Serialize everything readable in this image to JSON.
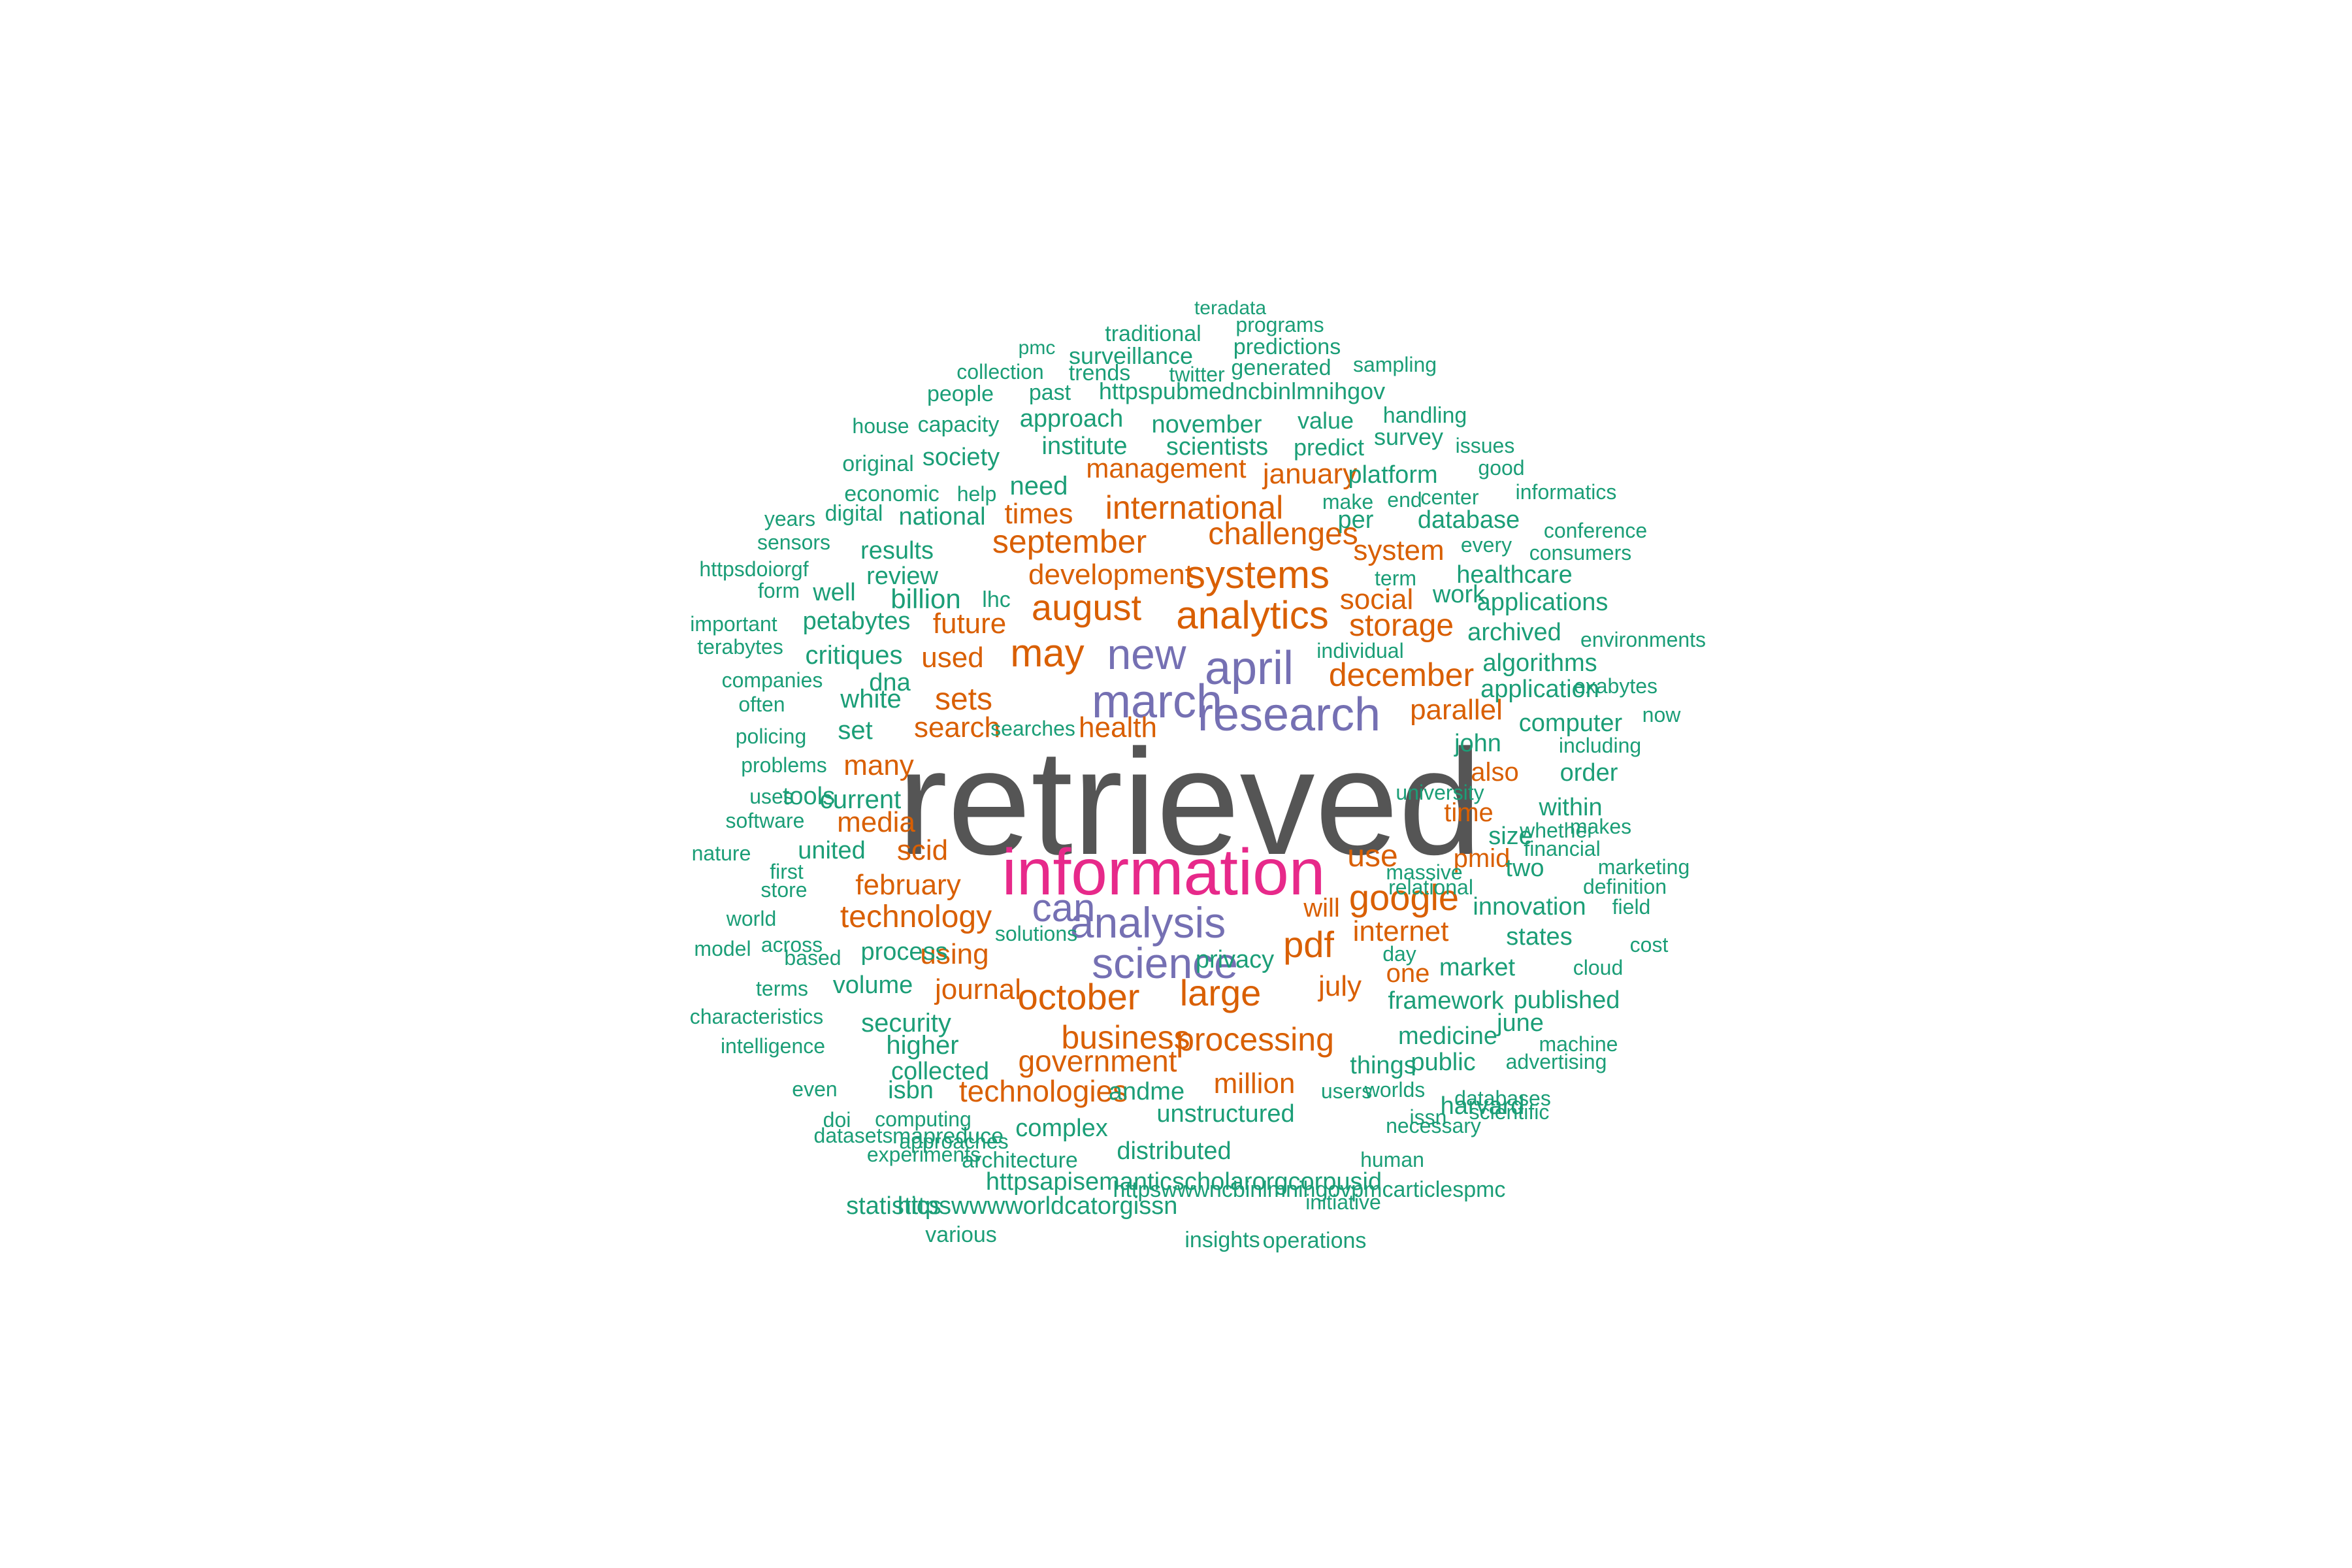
{
  "colors": {
    "c1": "#1b9e77",
    "c2": "#d95f02",
    "c3": "#7570b3",
    "c4": "#e7298a",
    "c5": "#555555"
  },
  "words": [
    {
      "t": "retrieved",
      "c": "c5"
    },
    {
      "t": "information",
      "c": "c4"
    },
    {
      "t": "research",
      "c": "c3"
    },
    {
      "t": "april",
      "c": "c3"
    },
    {
      "t": "march",
      "c": "c3"
    },
    {
      "t": "new",
      "c": "c3"
    },
    {
      "t": "analysis",
      "c": "c3"
    },
    {
      "t": "science",
      "c": "c3"
    },
    {
      "t": "can",
      "c": "c3"
    },
    {
      "t": "may",
      "c": "c2"
    },
    {
      "t": "analytics",
      "c": "c2"
    },
    {
      "t": "systems",
      "c": "c2"
    },
    {
      "t": "august",
      "c": "c2"
    },
    {
      "t": "october",
      "c": "c2"
    },
    {
      "t": "large",
      "c": "c2"
    },
    {
      "t": "google",
      "c": "c2"
    },
    {
      "t": "pdf",
      "c": "c2"
    },
    {
      "t": "business",
      "c": "c2"
    },
    {
      "t": "processing",
      "c": "c2"
    },
    {
      "t": "december",
      "c": "c2"
    },
    {
      "t": "september",
      "c": "c2"
    },
    {
      "t": "challenges",
      "c": "c2"
    },
    {
      "t": "international",
      "c": "c2"
    },
    {
      "t": "technology",
      "c": "c2"
    },
    {
      "t": "storage",
      "c": "c2"
    },
    {
      "t": "development",
      "c": "c2"
    },
    {
      "t": "sets",
      "c": "c2"
    },
    {
      "t": "use",
      "c": "c2"
    },
    {
      "t": "internet",
      "c": "c2"
    },
    {
      "t": "government",
      "c": "c2"
    },
    {
      "t": "technologies",
      "c": "c2"
    },
    {
      "t": "million",
      "c": "c2"
    },
    {
      "t": "journal",
      "c": "c2"
    },
    {
      "t": "parallel",
      "c": "c2"
    },
    {
      "t": "future",
      "c": "c2"
    },
    {
      "t": "management",
      "c": "c2"
    },
    {
      "t": "january",
      "c": "c2"
    },
    {
      "t": "times",
      "c": "c2"
    },
    {
      "t": "system",
      "c": "c2"
    },
    {
      "t": "social",
      "c": "c2"
    },
    {
      "t": "used",
      "c": "c2"
    },
    {
      "t": "search",
      "c": "c2"
    },
    {
      "t": "health",
      "c": "c2"
    },
    {
      "t": "many",
      "c": "c2"
    },
    {
      "t": "media",
      "c": "c2"
    },
    {
      "t": "scid",
      "c": "c2"
    },
    {
      "t": "february",
      "c": "c2"
    },
    {
      "t": "using",
      "c": "c2"
    },
    {
      "t": "july",
      "c": "c2"
    },
    {
      "t": "one",
      "c": "c2"
    },
    {
      "t": "will",
      "c": "c2"
    },
    {
      "t": "pmid",
      "c": "c2"
    },
    {
      "t": "time",
      "c": "c2"
    },
    {
      "t": "also",
      "c": "c2"
    },
    {
      "t": "teradata",
      "c": "c1"
    },
    {
      "t": "traditional",
      "c": "c1"
    },
    {
      "t": "programs",
      "c": "c1"
    },
    {
      "t": "pmc",
      "c": "c1"
    },
    {
      "t": "surveillance",
      "c": "c1"
    },
    {
      "t": "predictions",
      "c": "c1"
    },
    {
      "t": "collection",
      "c": "c1"
    },
    {
      "t": "trends",
      "c": "c1"
    },
    {
      "t": "twitter",
      "c": "c1"
    },
    {
      "t": "generated",
      "c": "c1"
    },
    {
      "t": "sampling",
      "c": "c1"
    },
    {
      "t": "people",
      "c": "c1"
    },
    {
      "t": "past",
      "c": "c1"
    },
    {
      "t": "httpspubmedncbinlmnihgov",
      "c": "c1"
    },
    {
      "t": "house",
      "c": "c1"
    },
    {
      "t": "capacity",
      "c": "c1"
    },
    {
      "t": "approach",
      "c": "c1"
    },
    {
      "t": "november",
      "c": "c1"
    },
    {
      "t": "value",
      "c": "c1"
    },
    {
      "t": "handling",
      "c": "c1"
    },
    {
      "t": "survey",
      "c": "c1"
    },
    {
      "t": "issues",
      "c": "c1"
    },
    {
      "t": "original",
      "c": "c1"
    },
    {
      "t": "society",
      "c": "c1"
    },
    {
      "t": "institute",
      "c": "c1"
    },
    {
      "t": "scientists",
      "c": "c1"
    },
    {
      "t": "predict",
      "c": "c1"
    },
    {
      "t": "good",
      "c": "c1"
    },
    {
      "t": "platform",
      "c": "c1"
    },
    {
      "t": "economic",
      "c": "c1"
    },
    {
      "t": "help",
      "c": "c1"
    },
    {
      "t": "need",
      "c": "c1"
    },
    {
      "t": "make",
      "c": "c1"
    },
    {
      "t": "end",
      "c": "c1"
    },
    {
      "t": "center",
      "c": "c1"
    },
    {
      "t": "informatics",
      "c": "c1"
    },
    {
      "t": "years",
      "c": "c1"
    },
    {
      "t": "digital",
      "c": "c1"
    },
    {
      "t": "national",
      "c": "c1"
    },
    {
      "t": "per",
      "c": "c1"
    },
    {
      "t": "database",
      "c": "c1"
    },
    {
      "t": "conference",
      "c": "c1"
    },
    {
      "t": "sensors",
      "c": "c1"
    },
    {
      "t": "results",
      "c": "c1"
    },
    {
      "t": "every",
      "c": "c1"
    },
    {
      "t": "consumers",
      "c": "c1"
    },
    {
      "t": "httpsdoiorgf",
      "c": "c1"
    },
    {
      "t": "review",
      "c": "c1"
    },
    {
      "t": "term",
      "c": "c1"
    },
    {
      "t": "healthcare",
      "c": "c1"
    },
    {
      "t": "form",
      "c": "c1"
    },
    {
      "t": "well",
      "c": "c1"
    },
    {
      "t": "billion",
      "c": "c1"
    },
    {
      "t": "lhc",
      "c": "c1"
    },
    {
      "t": "work",
      "c": "c1"
    },
    {
      "t": "applications",
      "c": "c1"
    },
    {
      "t": "important",
      "c": "c1"
    },
    {
      "t": "petabytes",
      "c": "c1"
    },
    {
      "t": "archived",
      "c": "c1"
    },
    {
      "t": "environments",
      "c": "c1"
    },
    {
      "t": "terabytes",
      "c": "c1"
    },
    {
      "t": "critiques",
      "c": "c1"
    },
    {
      "t": "individual",
      "c": "c1"
    },
    {
      "t": "algorithms",
      "c": "c1"
    },
    {
      "t": "companies",
      "c": "c1"
    },
    {
      "t": "dna",
      "c": "c1"
    },
    {
      "t": "application",
      "c": "c1"
    },
    {
      "t": "exabytes",
      "c": "c1"
    },
    {
      "t": "often",
      "c": "c1"
    },
    {
      "t": "white",
      "c": "c1"
    },
    {
      "t": "now",
      "c": "c1"
    },
    {
      "t": "policing",
      "c": "c1"
    },
    {
      "t": "set",
      "c": "c1"
    },
    {
      "t": "searches",
      "c": "c1"
    },
    {
      "t": "computer",
      "c": "c1"
    },
    {
      "t": "john",
      "c": "c1"
    },
    {
      "t": "including",
      "c": "c1"
    },
    {
      "t": "problems",
      "c": "c1"
    },
    {
      "t": "order",
      "c": "c1"
    },
    {
      "t": "uses",
      "c": "c1"
    },
    {
      "t": "tools",
      "c": "c1"
    },
    {
      "t": "current",
      "c": "c1"
    },
    {
      "t": "university",
      "c": "c1"
    },
    {
      "t": "software",
      "c": "c1"
    },
    {
      "t": "within",
      "c": "c1"
    },
    {
      "t": "size",
      "c": "c1"
    },
    {
      "t": "whether",
      "c": "c1"
    },
    {
      "t": "makes",
      "c": "c1"
    },
    {
      "t": "nature",
      "c": "c1"
    },
    {
      "t": "united",
      "c": "c1"
    },
    {
      "t": "financial",
      "c": "c1"
    },
    {
      "t": "first",
      "c": "c1"
    },
    {
      "t": "massive",
      "c": "c1"
    },
    {
      "t": "two",
      "c": "c1"
    },
    {
      "t": "marketing",
      "c": "c1"
    },
    {
      "t": "store",
      "c": "c1"
    },
    {
      "t": "relational",
      "c": "c1"
    },
    {
      "t": "definition",
      "c": "c1"
    },
    {
      "t": "world",
      "c": "c1"
    },
    {
      "t": "innovation",
      "c": "c1"
    },
    {
      "t": "field",
      "c": "c1"
    },
    {
      "t": "across",
      "c": "c1"
    },
    {
      "t": "solutions",
      "c": "c1"
    },
    {
      "t": "model",
      "c": "c1"
    },
    {
      "t": "based",
      "c": "c1"
    },
    {
      "t": "process",
      "c": "c1"
    },
    {
      "t": "states",
      "c": "c1"
    },
    {
      "t": "cost",
      "c": "c1"
    },
    {
      "t": "day",
      "c": "c1"
    },
    {
      "t": "privacy",
      "c": "c1"
    },
    {
      "t": "market",
      "c": "c1"
    },
    {
      "t": "cloud",
      "c": "c1"
    },
    {
      "t": "terms",
      "c": "c1"
    },
    {
      "t": "volume",
      "c": "c1"
    },
    {
      "t": "framework",
      "c": "c1"
    },
    {
      "t": "published",
      "c": "c1"
    },
    {
      "t": "characteristics",
      "c": "c1"
    },
    {
      "t": "security",
      "c": "c1"
    },
    {
      "t": "june",
      "c": "c1"
    },
    {
      "t": "medicine",
      "c": "c1"
    },
    {
      "t": "intelligence",
      "c": "c1"
    },
    {
      "t": "higher",
      "c": "c1"
    },
    {
      "t": "machine",
      "c": "c1"
    },
    {
      "t": "collected",
      "c": "c1"
    },
    {
      "t": "things",
      "c": "c1"
    },
    {
      "t": "public",
      "c": "c1"
    },
    {
      "t": "advertising",
      "c": "c1"
    },
    {
      "t": "even",
      "c": "c1"
    },
    {
      "t": "isbn",
      "c": "c1"
    },
    {
      "t": "andme",
      "c": "c1"
    },
    {
      "t": "users",
      "c": "c1"
    },
    {
      "t": "worlds",
      "c": "c1"
    },
    {
      "t": "databases",
      "c": "c1"
    },
    {
      "t": "harvard",
      "c": "c1"
    },
    {
      "t": "scientific",
      "c": "c1"
    },
    {
      "t": "unstructured",
      "c": "c1"
    },
    {
      "t": "issn",
      "c": "c1"
    },
    {
      "t": "doi",
      "c": "c1"
    },
    {
      "t": "computing",
      "c": "c1"
    },
    {
      "t": "necessary",
      "c": "c1"
    },
    {
      "t": "datasets",
      "c": "c1"
    },
    {
      "t": "mapreduce",
      "c": "c1"
    },
    {
      "t": "complex",
      "c": "c1"
    },
    {
      "t": "approaches",
      "c": "c1"
    },
    {
      "t": "human",
      "c": "c1"
    },
    {
      "t": "distributed",
      "c": "c1"
    },
    {
      "t": "architecture",
      "c": "c1"
    },
    {
      "t": "httpsapisemanticscholarorgcorpusid",
      "c": "c1"
    },
    {
      "t": "experiments",
      "c": "c1"
    },
    {
      "t": "httpswwwncbinlmnihgovpmcarticlespmc",
      "c": "c1"
    },
    {
      "t": "statistics",
      "c": "c1"
    },
    {
      "t": "httpswwwworldcatorgissn",
      "c": "c1"
    },
    {
      "t": "initiative",
      "c": "c1"
    },
    {
      "t": "various",
      "c": "c1"
    },
    {
      "t": "insights",
      "c": "c1"
    },
    {
      "t": "operations",
      "c": "c1"
    }
  ]
}
